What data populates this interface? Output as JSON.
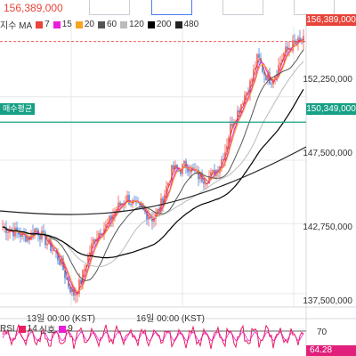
{
  "header": {
    "last_price": "156,389,000"
  },
  "ma_legend": {
    "label": "지수 MA",
    "items": [
      {
        "period": "7",
        "color": "#e8443a"
      },
      {
        "period": "15",
        "color": "#e91edb"
      },
      {
        "period": "20",
        "color": "#f5a623"
      },
      {
        "period": "60",
        "color": "#555555"
      },
      {
        "period": "120",
        "color": "#bbbbbb"
      },
      {
        "period": "200",
        "color": "#000000"
      },
      {
        "period": "480",
        "color": "#222222"
      }
    ]
  },
  "price_axis": {
    "labels": [
      "152,250,000",
      "147,500,000",
      "142,750,000",
      "137,500,000"
    ],
    "current_price": "156,389,000",
    "average_price": "150,349,000",
    "average_label": "매수평균"
  },
  "time_axis": {
    "labels": [
      "13일 00:00 (KST)",
      "16일 00:00 (KST)"
    ]
  },
  "rsi": {
    "label": "RSI",
    "period": "14",
    "signal_label": "신호",
    "signal_period": "9",
    "line_color": "#e91e63",
    "signal_color": "#e91edb",
    "level_70": "70",
    "value": "64.28"
  },
  "colors": {
    "up": "#e8443a",
    "down": "#2f6fd6",
    "grid": "#e6e8ec",
    "average_line": "#16a085"
  },
  "chart_data": {
    "type": "line",
    "x_ticks": [
      "13일 00:00 (KST)",
      "16일 00:00 (KST)"
    ],
    "y_ticks": [
      152250000,
      147500000,
      142750000,
      137500000
    ],
    "ylim": [
      136500000,
      157500000
    ],
    "price_path": [
      142500000,
      142300000,
      142100000,
      141900000,
      141700000,
      142400000,
      141800000,
      141200000,
      140600000,
      139700000,
      138200000,
      137400000,
      138500000,
      140200000,
      141600000,
      142300000,
      142600000,
      143600000,
      144200000,
      144700000,
      144200000,
      143800000,
      143500000,
      143100000,
      143900000,
      145400000,
      146900000,
      146700000,
      147200000,
      146700000,
      146300000,
      146100000,
      146400000,
      147000000,
      148200000,
      150300000,
      151200000,
      152400000,
      153400000,
      155200000,
      154000000,
      153500000,
      154300000,
      155500000,
      156000000,
      156300000,
      156389000
    ],
    "average_buy_price": 150349000,
    "rsi_level": 70,
    "rsi_last": 64.28
  }
}
